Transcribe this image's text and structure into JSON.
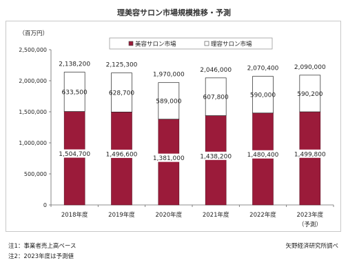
{
  "chart_data": {
    "type": "bar",
    "stacked": true,
    "title": "理美容サロン市場規模推移・予測",
    "ylabel": "（百万円）",
    "ylim": [
      0,
      2500000
    ],
    "yticks": [
      0,
      500000,
      1000000,
      1500000,
      2000000,
      2500000
    ],
    "ytick_labels": [
      "0",
      "500,000",
      "1,000,000",
      "1,500,000",
      "2,000,000",
      "2,500,000"
    ],
    "grid": false,
    "legend_position": "top-center",
    "categories": [
      "2018年度",
      "2019年度",
      "2020年度",
      "2021年度",
      "2022年度",
      "2023年度"
    ],
    "category_sublabels": [
      "",
      "",
      "",
      "",
      "",
      "（予測）"
    ],
    "series": [
      {
        "name": "美容サロン市場",
        "color": "#9b1b3a",
        "values": [
          1504700,
          1496600,
          1381000,
          1438200,
          1480400,
          1499800
        ],
        "labels": [
          "1,504,700",
          "1,496,600",
          "1,381,000",
          "1,438,200",
          "1,480,400",
          "1,499,800"
        ]
      },
      {
        "name": "理容サロン市場",
        "color": "#ffffff",
        "values": [
          633500,
          628700,
          589000,
          607800,
          590000,
          590200
        ],
        "labels": [
          "633,500",
          "628,700",
          "589,000",
          "607,800",
          "590,000",
          "590,200"
        ]
      }
    ],
    "totals": [
      2138200,
      2125300,
      1970000,
      2046000,
      2070400,
      2090000
    ],
    "total_labels": [
      "2,138,200",
      "2,125,300",
      "1,970,000",
      "2,046,000",
      "2,070,400",
      "2,090,000"
    ]
  },
  "notes": {
    "note1": "注1：事業者売上高ベース",
    "note2": "注2：2023年度は予測値",
    "source": "矢野経済研究所調べ"
  }
}
